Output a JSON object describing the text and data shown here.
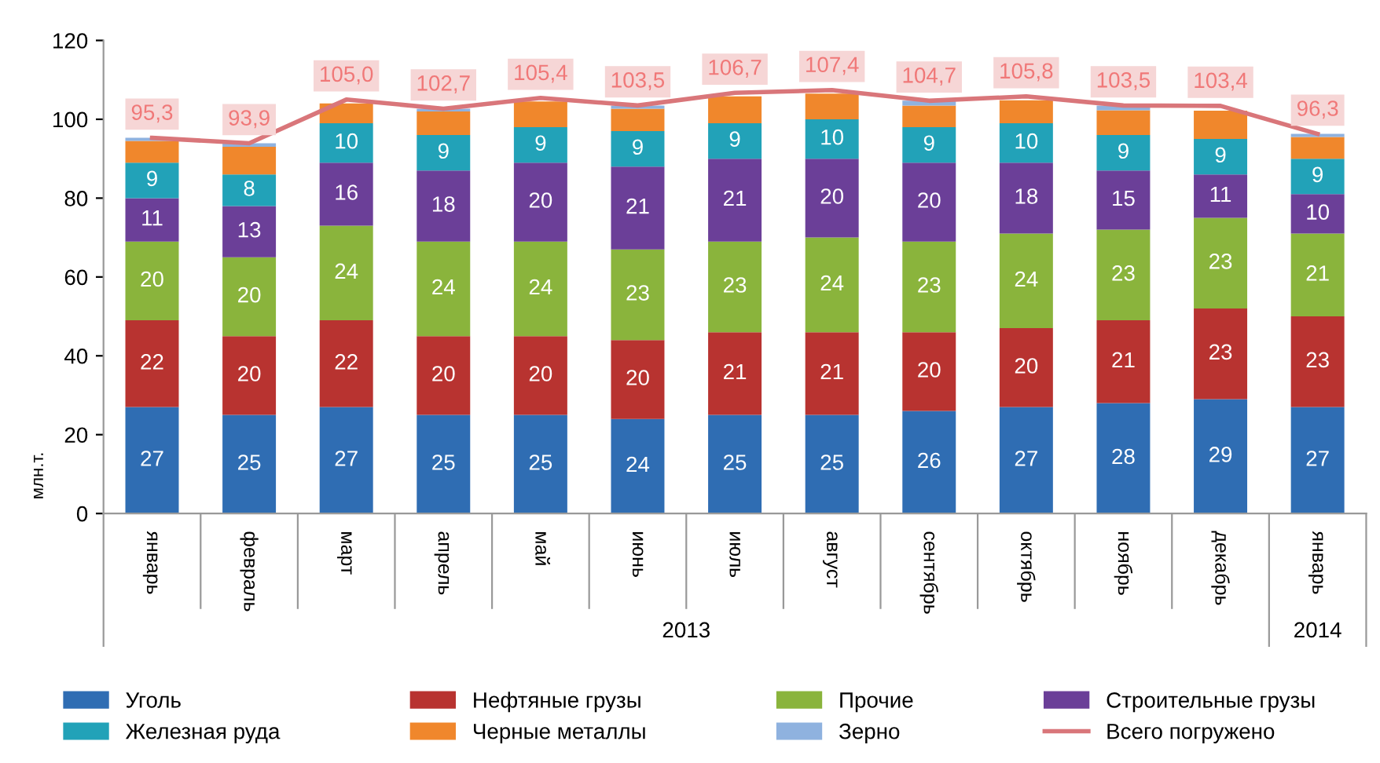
{
  "chart_data": {
    "type": "bar",
    "stacked": true,
    "ylabel": "млн.т.",
    "ylim": [
      0,
      120
    ],
    "yticks": [
      0,
      20,
      40,
      60,
      80,
      100,
      120
    ],
    "grid": false,
    "legend": "bottom",
    "categories": [
      "январь",
      "февраль",
      "март",
      "апрель",
      "май",
      "июнь",
      "июль",
      "август",
      "сентябрь",
      "октябрь",
      "ноябрь",
      "декабрь",
      "январь"
    ],
    "annotations": [
      "2013",
      "2014"
    ],
    "series": [
      {
        "name": "Уголь",
        "color": "#2f6db3",
        "values": [
          27,
          25,
          27,
          25,
          25,
          24,
          25,
          25,
          26,
          27,
          28,
          29,
          27
        ],
        "value_labels": [
          "27",
          "25",
          "27",
          "25",
          "25",
          "24",
          "25",
          "25",
          "26",
          "27",
          "28",
          "29",
          "27"
        ]
      },
      {
        "name": "Нефтяные грузы",
        "color": "#b83330",
        "values": [
          22,
          20,
          22,
          20,
          20,
          20,
          21,
          21,
          20,
          20,
          21,
          23,
          23
        ],
        "value_labels": [
          "22",
          "20",
          "22",
          "20",
          "20",
          "20",
          "21",
          "21",
          "20",
          "20",
          "21",
          "23",
          "23"
        ]
      },
      {
        "name": "Прочие",
        "color": "#8ab43c",
        "values": [
          20,
          20,
          24,
          24,
          24,
          23,
          23,
          24,
          23,
          24,
          23,
          23,
          21
        ],
        "value_labels": [
          "20",
          "20",
          "24",
          "24",
          "24",
          "23",
          "23",
          "24",
          "23",
          "24",
          "23",
          "23",
          "21"
        ]
      },
      {
        "name": "Строительные грузы",
        "color": "#6b3f98",
        "values": [
          11,
          13,
          16,
          18,
          20,
          21,
          21,
          20,
          20,
          18,
          15,
          11,
          10
        ],
        "value_labels": [
          "11",
          "13",
          "16",
          "18",
          "20",
          "21",
          "21",
          "20",
          "20",
          "18",
          "15",
          "11",
          "10"
        ]
      },
      {
        "name": "Железная руда",
        "color": "#22a2b8",
        "values": [
          9,
          8,
          10,
          9,
          9,
          9,
          9,
          10,
          9,
          10,
          9,
          9,
          9
        ],
        "value_labels": [
          "9",
          "8",
          "10",
          "9",
          "9",
          "9",
          "9",
          "10",
          "9",
          "10",
          "9",
          "9",
          "9"
        ]
      },
      {
        "name": "Черные металлы",
        "color": "#f0872c",
        "values": [
          5.5,
          7,
          5,
          6,
          6.5,
          5.7,
          6.8,
          6.5,
          5.5,
          5.8,
          6.3,
          7.2,
          5.5
        ]
      },
      {
        "name": "Зерно",
        "color": "#8fb2df",
        "values": [
          0.8,
          0.9,
          null,
          0.7,
          null,
          0.8,
          null,
          null,
          1.2,
          null,
          1.2,
          null,
          0.8
        ]
      },
      {
        "name": "Всего погружено",
        "type": "line",
        "color": "#d9767a",
        "values": [
          95.3,
          93.9,
          105.0,
          102.7,
          105.4,
          103.5,
          106.7,
          107.4,
          104.7,
          105.8,
          103.5,
          103.4,
          96.3
        ],
        "value_labels": [
          "95,3",
          "93,9",
          "105,0",
          "102,7",
          "105,4",
          "103,5",
          "106,7",
          "107,4",
          "104,7",
          "105,8",
          "103,5",
          "103,4",
          "96,3"
        ]
      }
    ]
  }
}
